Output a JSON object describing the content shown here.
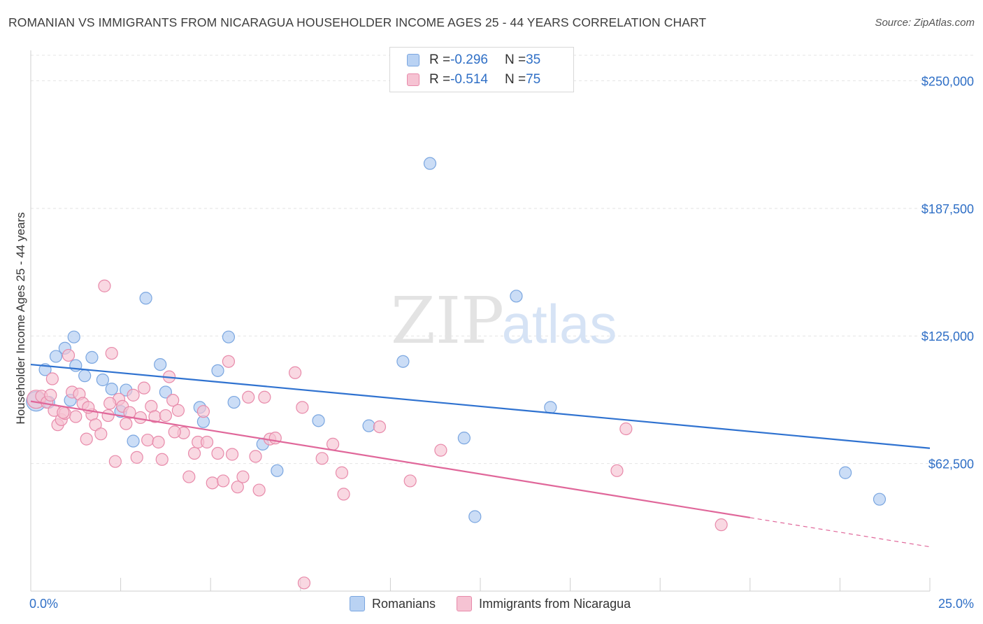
{
  "header": {
    "title": "ROMANIAN VS IMMIGRANTS FROM NICARAGUA HOUSEHOLDER INCOME AGES 25 - 44 YEARS CORRELATION CHART",
    "source": "Source: ZipAtlas.com"
  },
  "watermark": {
    "zip": "ZIP",
    "atlas": "atlas"
  },
  "legend": {
    "rows": [
      {
        "r_label": "R = ",
        "r_value": "-0.296",
        "n_label": "N = ",
        "n_value": "35"
      },
      {
        "r_label": "R = ",
        "r_value": "-0.514",
        "n_label": "N = ",
        "n_value": "75"
      }
    ]
  },
  "colors": {
    "romanians_fill": "#b9d2f3",
    "romanians_stroke": "#7aa6e0",
    "romanians_line": "#2f72d0",
    "nicaragua_fill": "#f6c3d3",
    "nicaragua_stroke": "#e88aaa",
    "nicaragua_line": "#e0679a",
    "axis_label": "#2f6fc6"
  },
  "chart_data": {
    "type": "scatter",
    "title": "ROMANIAN VS IMMIGRANTS FROM NICARAGUA HOUSEHOLDER INCOME AGES 25 - 44 YEARS CORRELATION CHART",
    "xlabel": "",
    "ylabel": "Householder Income Ages 25 - 44 years",
    "xlim": [
      0,
      25
    ],
    "ylim": [
      0,
      262500
    ],
    "x_tick_labels": [
      "0.0%",
      "25.0%"
    ],
    "y_ticks": [
      62500,
      125000,
      187500,
      250000
    ],
    "y_tick_labels": [
      "$62,500",
      "$125,000",
      "$187,500",
      "$250,000"
    ],
    "grid": true,
    "legend_position": "top-center",
    "series": [
      {
        "name": "Romanians",
        "r": -0.296,
        "n": 35,
        "trend": {
          "x": [
            0,
            25
          ],
          "y": [
            111000,
            70000
          ]
        },
        "points": [
          [
            0.15,
            93000
          ],
          [
            0.4,
            108500
          ],
          [
            0.7,
            115000
          ],
          [
            0.95,
            119000
          ],
          [
            1.2,
            124500
          ],
          [
            1.25,
            110500
          ],
          [
            1.5,
            105500
          ],
          [
            1.7,
            114500
          ],
          [
            2.0,
            103500
          ],
          [
            2.25,
            99000
          ],
          [
            3.2,
            143500
          ],
          [
            2.5,
            88000
          ],
          [
            2.65,
            98500
          ],
          [
            2.85,
            73500
          ],
          [
            3.6,
            111000
          ],
          [
            3.75,
            97500
          ],
          [
            4.7,
            90000
          ],
          [
            4.8,
            83000
          ],
          [
            5.2,
            108000
          ],
          [
            5.5,
            124500
          ],
          [
            5.65,
            92500
          ],
          [
            6.45,
            72000
          ],
          [
            6.85,
            59000
          ],
          [
            8.0,
            83500
          ],
          [
            9.4,
            81000
          ],
          [
            10.35,
            112500
          ],
          [
            11.1,
            209500
          ],
          [
            12.05,
            75000
          ],
          [
            12.35,
            36500
          ],
          [
            13.5,
            144500
          ],
          [
            14.45,
            90000
          ],
          [
            22.65,
            58000
          ],
          [
            23.6,
            45000
          ],
          [
            0.5,
            92500
          ],
          [
            1.1,
            93500
          ]
        ]
      },
      {
        "name": "Immigrants from Nicaragua",
        "r": -0.514,
        "n": 75,
        "trend": {
          "x": [
            0,
            20
          ],
          "y": [
            93000,
            36000
          ]
        },
        "trend_extension": {
          "x": [
            20,
            25
          ],
          "y": [
            36000,
            21700
          ]
        },
        "points": [
          [
            0.15,
            94000
          ],
          [
            0.3,
            95500
          ],
          [
            0.45,
            92500
          ],
          [
            0.55,
            96000
          ],
          [
            0.6,
            104000
          ],
          [
            0.65,
            88500
          ],
          [
            0.75,
            81500
          ],
          [
            0.85,
            84000
          ],
          [
            0.95,
            87000
          ],
          [
            1.05,
            115500
          ],
          [
            1.15,
            97500
          ],
          [
            1.25,
            85500
          ],
          [
            1.35,
            96500
          ],
          [
            1.45,
            92000
          ],
          [
            1.55,
            74500
          ],
          [
            1.7,
            86500
          ],
          [
            1.8,
            81500
          ],
          [
            1.95,
            77000
          ],
          [
            2.05,
            149500
          ],
          [
            2.15,
            86000
          ],
          [
            2.25,
            116500
          ],
          [
            2.35,
            63500
          ],
          [
            2.45,
            94000
          ],
          [
            2.55,
            90500
          ],
          [
            2.65,
            82000
          ],
          [
            2.75,
            87500
          ],
          [
            2.85,
            96000
          ],
          [
            2.95,
            65500
          ],
          [
            3.05,
            85000
          ],
          [
            3.15,
            99500
          ],
          [
            3.25,
            74000
          ],
          [
            3.35,
            90500
          ],
          [
            3.45,
            85500
          ],
          [
            3.55,
            73000
          ],
          [
            3.65,
            64500
          ],
          [
            3.75,
            86000
          ],
          [
            3.85,
            105000
          ],
          [
            3.95,
            93500
          ],
          [
            4.1,
            88500
          ],
          [
            4.25,
            77500
          ],
          [
            4.4,
            56000
          ],
          [
            4.55,
            67500
          ],
          [
            4.65,
            73000
          ],
          [
            4.8,
            88000
          ],
          [
            4.9,
            73000
          ],
          [
            5.05,
            53000
          ],
          [
            5.2,
            67500
          ],
          [
            5.35,
            54000
          ],
          [
            5.5,
            112500
          ],
          [
            5.6,
            67000
          ],
          [
            5.75,
            51000
          ],
          [
            5.9,
            56000
          ],
          [
            6.05,
            95000
          ],
          [
            6.25,
            66000
          ],
          [
            6.35,
            49500
          ],
          [
            6.5,
            95000
          ],
          [
            6.65,
            74500
          ],
          [
            6.8,
            75000
          ],
          [
            7.35,
            107000
          ],
          [
            7.55,
            90000
          ],
          [
            7.6,
            4000
          ],
          [
            8.1,
            65000
          ],
          [
            8.4,
            72000
          ],
          [
            8.65,
            58000
          ],
          [
            8.7,
            47500
          ],
          [
            9.7,
            80500
          ],
          [
            10.55,
            54000
          ],
          [
            11.4,
            69000
          ],
          [
            16.3,
            59000
          ],
          [
            16.55,
            79500
          ],
          [
            19.2,
            32500
          ],
          [
            0.9,
            87500
          ],
          [
            1.6,
            90000
          ],
          [
            2.2,
            92000
          ],
          [
            4.0,
            78000
          ]
        ]
      }
    ]
  },
  "bottom_legend": {
    "items": [
      {
        "label": "Romanians"
      },
      {
        "label": "Immigrants from Nicaragua"
      }
    ]
  }
}
